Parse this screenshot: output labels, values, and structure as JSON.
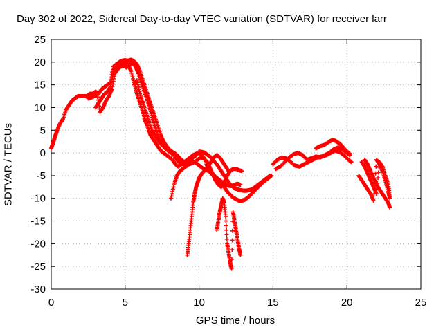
{
  "chart_data": {
    "type": "scatter",
    "title": "Day 302 of 2022, Sidereal Day-to-day VTEC variation (SDTVAR) for receiver larr",
    "xlabel": "GPS time / hours",
    "ylabel": "SDTVAR / TECUs",
    "xlim": [
      0,
      25
    ],
    "ylim": [
      -30,
      25
    ],
    "xticks": [
      0,
      5,
      10,
      15,
      20,
      25
    ],
    "yticks": [
      -30,
      -25,
      -20,
      -15,
      -10,
      -5,
      0,
      5,
      10,
      15,
      20,
      25
    ],
    "grid": true,
    "marker": "+",
    "color": "#ff0000",
    "series": [
      {
        "x": [
          0.0,
          0.1,
          0.2,
          0.3,
          0.4,
          0.6,
          0.8,
          1.0,
          1.2,
          1.4,
          1.6,
          1.8,
          2.0,
          2.2,
          2.4,
          2.6,
          2.8,
          3.0,
          3.2,
          3.4,
          3.6,
          3.8,
          4.0,
          4.2,
          4.4,
          4.6,
          4.8,
          5.0,
          5.2,
          5.4,
          5.6,
          5.8,
          6.0,
          6.2,
          6.4,
          6.6,
          6.8,
          7.0,
          7.2,
          7.4,
          7.6,
          7.8,
          8.0,
          8.2,
          8.4,
          8.6,
          8.8,
          9.0,
          9.2,
          9.4,
          9.6,
          9.8,
          10.0,
          10.2,
          10.4,
          10.6,
          10.8,
          11.0,
          11.2,
          11.4,
          11.6,
          11.8,
          12.0,
          12.2,
          12.4,
          12.6,
          12.8
        ],
        "y": [
          1.0,
          2.0,
          3.0,
          4.0,
          5.0,
          6.5,
          7.5,
          9.5,
          10.5,
          11.5,
          12.0,
          12.5,
          12.5,
          12.5,
          12.5,
          13.0,
          13.0,
          13.5,
          13.0,
          14.0,
          14.5,
          15.0,
          15.5,
          19.0,
          19.5,
          20.0,
          20.3,
          20.4,
          20.3,
          20.5,
          20.2,
          19.5,
          18.0,
          16.0,
          14.0,
          12.0,
          10.0,
          8.0,
          6.0,
          4.0,
          2.5,
          1.5,
          0.7,
          0.2,
          -0.2,
          -0.8,
          -1.5,
          -2.0,
          -1.5,
          -1.0,
          -0.5,
          -0.2,
          0.0,
          -0.5,
          -1.5,
          -3.5,
          -4.5,
          -5.0,
          -5.5,
          -6.0,
          -6.5,
          -7.0,
          -7.2,
          -7.3,
          -7.0,
          -6.8,
          -7.0
        ]
      },
      {
        "x": [
          2.5,
          2.7,
          2.9,
          3.1,
          3.3,
          3.5,
          3.7,
          3.9,
          4.1,
          4.3,
          4.5,
          4.7,
          4.9,
          5.1,
          5.3,
          5.5,
          5.7,
          5.9,
          6.1,
          6.3,
          6.5,
          6.7,
          6.9,
          7.1,
          7.3,
          7.5,
          7.7,
          7.9,
          8.1,
          8.3,
          8.5,
          8.7,
          8.9,
          9.1,
          9.3,
          9.5,
          9.7,
          9.9,
          10.1,
          10.3,
          10.5,
          10.7,
          10.9,
          11.1,
          11.3,
          11.5,
          11.7,
          11.9,
          12.1,
          12.3,
          12.5,
          12.7,
          12.9,
          13.1,
          13.3,
          13.5,
          13.7,
          13.9,
          14.1,
          14.3,
          14.5,
          14.7,
          14.9
        ],
        "y": [
          12.0,
          12.2,
          12.5,
          13.0,
          9.0,
          10.0,
          11.5,
          12.5,
          14.0,
          17.5,
          18.5,
          19.0,
          19.2,
          18.8,
          19.5,
          19.8,
          19.0,
          17.5,
          15.5,
          13.5,
          11.5,
          9.5,
          7.0,
          5.0,
          3.0,
          1.8,
          1.0,
          0.5,
          0.0,
          -0.5,
          -1.5,
          -2.2,
          -2.5,
          -2.3,
          -2.0,
          -1.8,
          -2.0,
          -2.5,
          -3.0,
          -3.5,
          -3.8,
          -4.0,
          -4.5,
          -5.2,
          -6.0,
          -6.8,
          -7.5,
          -8.5,
          -9.2,
          -9.8,
          -10.2,
          -10.5,
          -10.5,
          -10.3,
          -9.8,
          -9.2,
          -8.5,
          -7.8,
          -7.2,
          -6.5,
          -6.0,
          -5.5,
          -5.0
        ]
      },
      {
        "x": [
          3.0,
          3.2,
          3.4,
          3.6,
          3.8,
          4.0,
          4.2,
          4.4,
          4.6,
          4.8,
          5.0,
          5.2,
          5.4,
          5.6,
          5.8,
          6.0,
          6.2,
          6.4,
          6.6,
          6.8,
          7.0,
          7.2,
          7.4,
          7.6,
          7.8,
          8.0,
          8.2,
          8.4,
          8.6,
          8.8,
          9.0,
          9.2,
          9.4,
          9.6,
          9.8,
          10.0,
          10.2,
          10.4,
          10.6,
          10.8,
          11.0,
          11.2,
          11.4,
          11.6,
          11.8,
          12.0,
          12.2,
          12.4,
          12.6,
          12.8,
          13.0,
          13.2,
          13.4,
          13.6,
          13.8,
          14.0,
          14.2,
          14.4,
          14.6,
          14.8
        ],
        "y": [
          10.0,
          11.0,
          12.0,
          13.0,
          13.5,
          14.5,
          18.0,
          18.5,
          19.0,
          19.5,
          19.8,
          19.5,
          18.0,
          15.5,
          13.0,
          11.0,
          9.0,
          7.0,
          5.0,
          3.5,
          2.5,
          1.5,
          0.5,
          0.0,
          -0.5,
          -1.0,
          -1.5,
          -2.5,
          -3.0,
          -2.5,
          -2.2,
          -2.0,
          -1.5,
          -1.0,
          -0.5,
          0.3,
          0.2,
          0.0,
          -0.5,
          -1.0,
          -1.8,
          -2.5,
          -3.5,
          -4.5,
          -5.5,
          -6.5,
          -7.2,
          -7.8,
          -8.0,
          -8.2,
          -8.3,
          -8.3,
          -8.2,
          -8.0,
          -7.5,
          -7.0,
          -6.5,
          -6.0,
          -5.5,
          -5.0
        ]
      },
      {
        "x": [
          5.6,
          5.8,
          6.0,
          6.2,
          6.4,
          6.6,
          6.8,
          7.0,
          7.2,
          7.4
        ],
        "y": [
          15.0,
          16.0,
          13.0,
          11.0,
          9.0,
          7.0,
          5.0,
          4.0,
          3.0,
          2.0
        ]
      },
      {
        "x": [
          6.3,
          6.5,
          6.7,
          6.9,
          7.1
        ],
        "y": [
          7.5,
          6.0,
          4.0,
          3.0,
          2.0
        ]
      },
      {
        "x": [
          8.1,
          8.3,
          8.5,
          8.7,
          8.9,
          9.1,
          9.3,
          9.5,
          9.7,
          9.9,
          10.1,
          10.3,
          10.5,
          10.7,
          10.9,
          11.1,
          11.3,
          11.5,
          11.7,
          11.9,
          12.1,
          12.3,
          12.5,
          12.7,
          12.9
        ],
        "y": [
          -10.0,
          -7.0,
          -5.0,
          -4.0,
          -3.5,
          -3.0,
          -2.5,
          -2.3,
          -2.0,
          -1.5,
          -1.0,
          -1.2,
          -1.8,
          -3.0,
          -4.5,
          -6.0,
          -7.0,
          -7.5,
          -6.5,
          -5.0,
          -4.0,
          -3.5,
          -3.5,
          -3.8,
          -4.0
        ]
      },
      {
        "x": [
          9.2,
          9.3,
          9.4,
          9.5,
          9.6,
          9.7,
          9.8,
          9.9,
          10.0,
          10.2,
          10.4,
          10.6,
          10.8,
          11.0,
          11.2,
          11.4,
          11.6,
          11.8,
          12.0
        ],
        "y": [
          -22.5,
          -20.0,
          -17.0,
          -14.0,
          -11.0,
          -9.0,
          -7.5,
          -6.5,
          -5.5,
          -4.5,
          -3.8,
          -3.0,
          -2.0,
          -1.0,
          -0.5,
          -1.0,
          -2.0,
          -3.0,
          -4.0
        ]
      },
      {
        "x": [
          11.2,
          11.3,
          11.4,
          11.5,
          11.6,
          11.7,
          11.8,
          11.9,
          12.0,
          12.1,
          12.2,
          12.3,
          12.4,
          12.5,
          12.6,
          12.7,
          12.8
        ],
        "y": [
          -17.0,
          -15.0,
          -13.0,
          -11.5,
          -10.0,
          -11.0,
          -14.0,
          -20.0,
          -22.0,
          -24.0,
          -25.5,
          -13.0,
          -15.0,
          -17.0,
          -19.0,
          -21.0,
          -22.5
        ]
      },
      {
        "x": [
          15.0,
          15.3,
          15.6,
          15.9,
          16.2,
          16.5,
          16.8,
          17.1,
          17.4,
          17.7,
          18.0,
          18.3,
          18.6,
          18.9,
          19.2,
          19.5,
          19.8,
          20.1,
          20.3
        ],
        "y": [
          -2.5,
          -1.5,
          -1.0,
          -1.2,
          -2.0,
          -2.8,
          -3.0,
          -2.5,
          -2.0,
          -1.5,
          -1.0,
          -0.8,
          -0.5,
          0.0,
          0.5,
          0.2,
          -0.5,
          -1.5,
          -2.0
        ]
      },
      {
        "x": [
          15.2,
          15.5,
          15.8,
          16.1,
          16.4,
          16.7,
          17.0,
          17.3,
          17.6,
          17.9,
          18.2,
          18.5,
          18.8,
          19.1,
          19.4,
          19.7,
          20.0,
          20.2
        ],
        "y": [
          -3.5,
          -3.0,
          -2.0,
          -1.0,
          -0.3,
          0.0,
          -0.5,
          -1.5,
          -1.2,
          -0.8,
          -1.0,
          -0.5,
          0.0,
          0.8,
          1.2,
          0.8,
          0.0,
          -0.5
        ]
      },
      {
        "x": [
          17.9,
          18.2,
          18.5,
          18.8,
          19.0,
          19.2,
          19.4,
          19.6,
          19.8,
          20.0,
          20.2
        ],
        "y": [
          1.0,
          1.5,
          1.8,
          2.5,
          2.8,
          2.7,
          2.3,
          1.8,
          1.0,
          0.3,
          -0.2
        ]
      },
      {
        "x": [
          20.8,
          21.0,
          21.2,
          21.4,
          21.6,
          21.8,
          22.0,
          22.2,
          22.4,
          22.6,
          22.8,
          22.9
        ],
        "y": [
          -5.0,
          -6.0,
          -7.0,
          -8.0,
          -9.0,
          -10.5,
          -1.5,
          -2.5,
          -4.0,
          -6.0,
          -8.5,
          -10.0
        ]
      },
      {
        "x": [
          21.0,
          21.2,
          21.4,
          21.6,
          21.8,
          22.0,
          22.2,
          22.4,
          22.6,
          22.8,
          22.9
        ],
        "y": [
          -2.0,
          -3.0,
          -4.5,
          -6.0,
          -7.5,
          -9.0,
          -2.0,
          -3.0,
          -5.0,
          -7.0,
          -9.5
        ]
      },
      {
        "x": [
          21.2,
          21.4,
          21.6,
          21.8,
          22.0,
          22.2,
          22.4,
          22.6,
          22.8,
          22.9
        ],
        "y": [
          -1.5,
          -2.5,
          -4.0,
          -5.5,
          -7.0,
          -8.0,
          -9.0,
          -10.0,
          -11.0,
          -12.0
        ]
      }
    ]
  }
}
